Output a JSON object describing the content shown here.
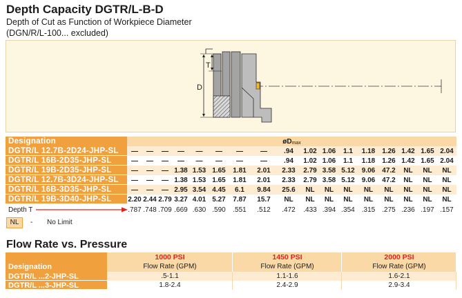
{
  "title": "Depth Capacity DGTR/L-B-D",
  "subtitle": "Depth of Cut as Function of Workpiece Diameter",
  "subtitle_note": "(DGN/R/L-100... excluded)",
  "diagram": {
    "label_t": "T",
    "label_d": "D"
  },
  "depth_table": {
    "designation_header": "Designation",
    "dmax_header": {
      "main": "øD",
      "sub": "max"
    },
    "rows": [
      {
        "designation": "DGTR/L 12.7B-2D24-JHP-SL",
        "values": [
          "—",
          "—",
          "—",
          "—",
          "—",
          "—",
          "—",
          "—",
          ".94",
          "1.02",
          "1.06",
          "1.1",
          "1.18",
          "1.26",
          "1.42",
          "1.65",
          "2.04"
        ]
      },
      {
        "designation": "DGTR/L 16B-2D35-JHP-SL",
        "values": [
          "—",
          "—",
          "—",
          "—",
          "—",
          "—",
          "—",
          "—",
          ".94",
          "1.02",
          "1.06",
          "1.1",
          "1.18",
          "1.26",
          "1.42",
          "1.65",
          "2.04"
        ]
      },
      {
        "designation": "DGTR/L 19B-2D35-JHP-SL",
        "values": [
          "—",
          "—",
          "—",
          "1.38",
          "1.53",
          "1.65",
          "1.81",
          "2.01",
          "2.33",
          "2.79",
          "3.58",
          "5.12",
          "9.06",
          "47.2",
          "NL",
          "NL",
          "NL"
        ]
      },
      {
        "designation": "DGTR/L 12.7B-3D24-JHP-SL",
        "values": [
          "—",
          "—",
          "—",
          "1.38",
          "1.53",
          "1.65",
          "1.81",
          "2.01",
          "2.33",
          "2.79",
          "3.58",
          "5.12",
          "9.06",
          "47.2",
          "NL",
          "NL",
          "NL"
        ]
      },
      {
        "designation": "DGTR/L 16B-3D35-JHP-SL",
        "values": [
          "—",
          "—",
          "—",
          "2.95",
          "3.54",
          "4.45",
          "6.1",
          "9.84",
          "25.6",
          "NL",
          "NL",
          "NL",
          "NL",
          "NL",
          "NL",
          "NL",
          "NL"
        ]
      },
      {
        "designation": "DGTR/L 19B-3D40-JHP-SL",
        "values": [
          "2.20",
          "2.44",
          "2.79",
          "3.27",
          "4.01",
          "5.27",
          "7.87",
          "15.7",
          "NL",
          "NL",
          "NL",
          "NL",
          "NL",
          "NL",
          "NL",
          "NL",
          "NL"
        ]
      }
    ],
    "depth_label": "Depth T",
    "depth_values": [
      ".787",
      ".748",
      ".709",
      ".669",
      ".630",
      ".590",
      ".551",
      ".512",
      ".472",
      ".433",
      ".394",
      ".354",
      ".315",
      ".275",
      ".236",
      ".197",
      ".157"
    ]
  },
  "legend": {
    "code": "NL",
    "separator": "-",
    "meaning": "No Limit"
  },
  "flow": {
    "heading": "Flow Rate vs. Pressure",
    "designation_header": "Designation",
    "columns": [
      {
        "pressure": "1000 PSI",
        "label": "Flow Rate (GPM)"
      },
      {
        "pressure": "1450 PSI",
        "label": "Flow Rate (GPM)"
      },
      {
        "pressure": "2000 PSI",
        "label": "Flow Rate (GPM)"
      }
    ],
    "rows": [
      {
        "designation": "DGTR/L ...2-JHP-SL",
        "values": [
          ".5-1.1",
          "1.1-1.6",
          "1.6-2.1"
        ]
      },
      {
        "designation": "DGTR/L ...3-JHP-SL",
        "values": [
          "1.8-2.4",
          "2.4-2.9",
          "2.9-3.4"
        ]
      }
    ]
  },
  "colors": {
    "orange": "#f0a03c",
    "peach": "#fbd9a6",
    "row_light": "#fdebd2",
    "psi_red": "#e3211c",
    "arrow_red": "#e3211c",
    "box_bg": "#fdf6e1",
    "box_border": "#e4d4aa",
    "insert": "#f3b61f"
  }
}
